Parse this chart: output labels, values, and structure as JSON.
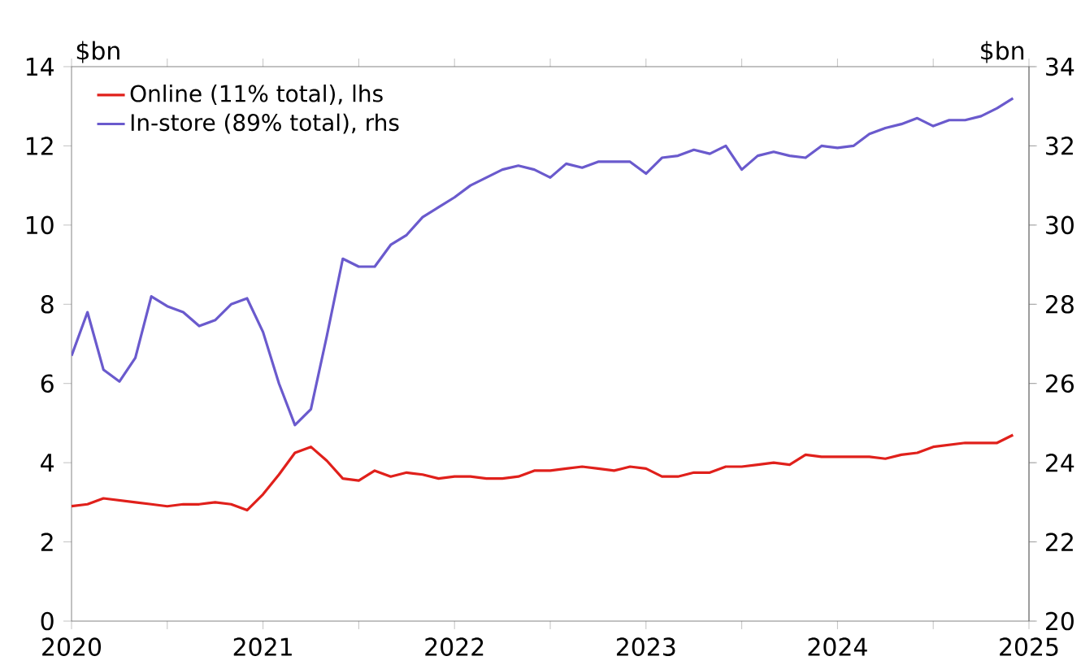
{
  "chart_data": {
    "type": "line",
    "ylabel": "$bn",
    "y2label": "$bn",
    "x": [
      "2020-01",
      "2020-02",
      "2020-03",
      "2020-04",
      "2020-05",
      "2020-06",
      "2020-07",
      "2020-08",
      "2020-09",
      "2020-10",
      "2020-11",
      "2020-12",
      "2021-01",
      "2021-02",
      "2021-03",
      "2021-04",
      "2021-05",
      "2021-06",
      "2021-07",
      "2021-08",
      "2021-09",
      "2021-10",
      "2021-11",
      "2021-12",
      "2022-01",
      "2022-02",
      "2022-03",
      "2022-04",
      "2022-05",
      "2022-06",
      "2022-07",
      "2022-08",
      "2022-09",
      "2022-10",
      "2022-11",
      "2022-12",
      "2023-01",
      "2023-02",
      "2023-03",
      "2023-04",
      "2023-05",
      "2023-06",
      "2023-07",
      "2023-08",
      "2023-09",
      "2023-10",
      "2023-11",
      "2023-12",
      "2024-01",
      "2024-02",
      "2024-03",
      "2024-04",
      "2024-05",
      "2024-06",
      "2024-07",
      "2024-08",
      "2024-09",
      "2024-10",
      "2024-11",
      "2024-12"
    ],
    "series": [
      {
        "name": "Online (11% total), lhs",
        "color": "#e0201b",
        "axis": "y",
        "values": [
          2.9,
          2.95,
          3.1,
          3.05,
          3.0,
          2.95,
          2.9,
          2.95,
          2.95,
          3.0,
          2.95,
          2.8,
          3.2,
          3.7,
          4.25,
          4.4,
          4.05,
          3.6,
          3.55,
          3.8,
          3.65,
          3.75,
          3.7,
          3.6,
          3.65,
          3.65,
          3.6,
          3.6,
          3.65,
          3.8,
          3.8,
          3.85,
          3.9,
          3.85,
          3.8,
          3.9,
          3.85,
          3.65,
          3.65,
          3.75,
          3.75,
          3.9,
          3.9,
          3.95,
          4.0,
          3.95,
          4.2,
          4.15,
          4.15,
          4.15,
          4.15,
          4.1,
          4.2,
          4.25,
          4.4,
          4.45,
          4.5,
          4.5,
          4.5,
          4.7
        ]
      },
      {
        "name": "In-store (89% total), rhs",
        "color": "#6a5acd",
        "axis": "y2",
        "values": [
          26.7,
          27.8,
          26.35,
          26.05,
          26.65,
          28.2,
          27.95,
          27.8,
          27.45,
          27.6,
          28.0,
          28.15,
          27.3,
          26.0,
          24.95,
          25.35,
          27.2,
          29.15,
          28.95,
          28.95,
          29.5,
          29.75,
          30.2,
          30.45,
          30.7,
          31.0,
          31.2,
          31.4,
          31.5,
          31.4,
          31.2,
          31.55,
          31.45,
          31.6,
          31.6,
          31.6,
          31.3,
          31.7,
          31.75,
          31.9,
          31.8,
          32.0,
          31.4,
          31.75,
          31.85,
          31.75,
          31.7,
          32.0,
          31.95,
          32.0,
          32.3,
          32.45,
          32.55,
          32.7,
          32.5,
          32.65,
          32.65,
          32.75,
          32.95,
          33.2
        ]
      }
    ],
    "xlim": [
      "2020",
      "2025"
    ],
    "xticks": [
      "2020",
      {
        "value": "2020-07",
        "label": null
      },
      "2021",
      {
        "value": "2021-07",
        "label": null
      },
      "2022",
      {
        "value": "2022-07",
        "label": null
      },
      "2023",
      {
        "value": "2023-07",
        "label": null
      },
      "2024",
      {
        "value": "2024-07",
        "label": null
      },
      "2025"
    ],
    "ylim": [
      0,
      14
    ],
    "yticks": [
      0,
      2,
      4,
      6,
      8,
      10,
      12,
      14
    ],
    "y2lim": [
      20,
      34
    ],
    "y2ticks": [
      20,
      22,
      24,
      26,
      28,
      30,
      32,
      34
    ],
    "legend": "top left",
    "grid": false
  }
}
